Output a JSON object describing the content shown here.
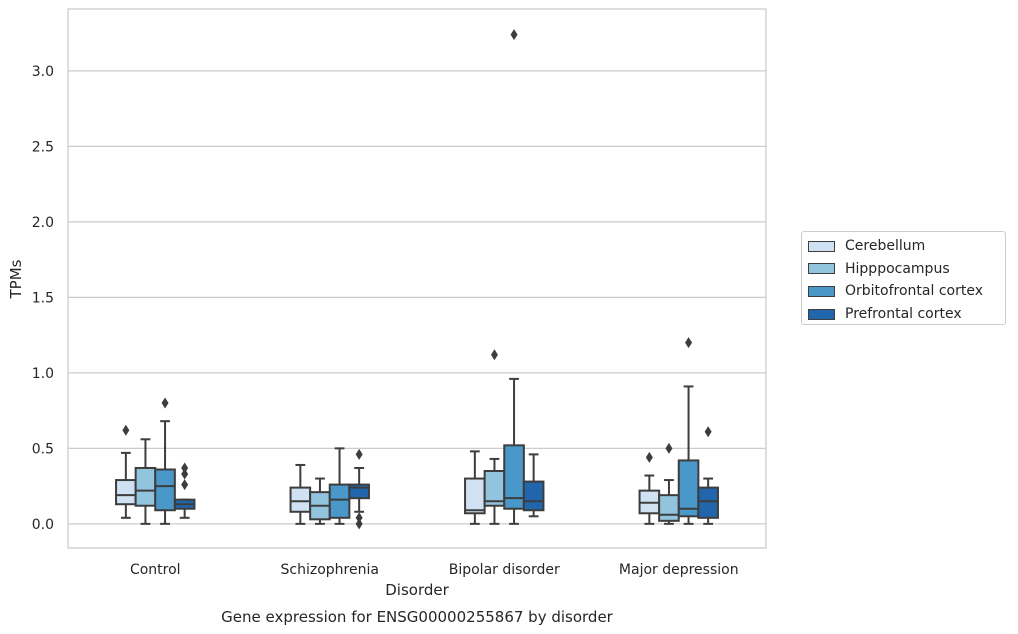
{
  "chart_data": {
    "type": "boxplot",
    "title": "",
    "caption": "Gene expression for ENSG00000255867 by disorder",
    "xlabel": "Disorder",
    "ylabel": "TPMs",
    "ylim": [
      -0.16,
      3.41
    ],
    "yticks": [
      "0.0",
      "0.5",
      "1.0",
      "1.5",
      "2.0",
      "2.5",
      "3.0"
    ],
    "grid": "horizontal",
    "legend_placement": "outside-right",
    "categories": [
      "Control",
      "Schizophrenia",
      "Bipolar disorder",
      "Major depression"
    ],
    "series": [
      {
        "name": "Cerebellum",
        "color": "#cfe1f2",
        "boxes": [
          {
            "whisker_low": 0.04,
            "q1": 0.13,
            "median": 0.19,
            "q3": 0.29,
            "whisker_high": 0.47,
            "outliers": [
              0.62
            ]
          },
          {
            "whisker_low": 0.0,
            "q1": 0.08,
            "median": 0.15,
            "q3": 0.24,
            "whisker_high": 0.39,
            "outliers": []
          },
          {
            "whisker_low": 0.0,
            "q1": 0.07,
            "median": 0.09,
            "q3": 0.3,
            "whisker_high": 0.48,
            "outliers": []
          },
          {
            "whisker_low": 0.0,
            "q1": 0.07,
            "median": 0.14,
            "q3": 0.22,
            "whisker_high": 0.32,
            "outliers": [
              0.44
            ]
          }
        ]
      },
      {
        "name": "Hipppocampus",
        "color": "#93c4de",
        "boxes": [
          {
            "whisker_low": 0.0,
            "q1": 0.12,
            "median": 0.22,
            "q3": 0.37,
            "whisker_high": 0.56,
            "outliers": []
          },
          {
            "whisker_low": 0.0,
            "q1": 0.03,
            "median": 0.12,
            "q3": 0.21,
            "whisker_high": 0.3,
            "outliers": []
          },
          {
            "whisker_low": 0.0,
            "q1": 0.12,
            "median": 0.15,
            "q3": 0.35,
            "whisker_high": 0.43,
            "outliers": [
              1.12
            ]
          },
          {
            "whisker_low": 0.0,
            "q1": 0.02,
            "median": 0.06,
            "q3": 0.19,
            "whisker_high": 0.29,
            "outliers": [
              0.5
            ]
          }
        ]
      },
      {
        "name": "Orbitofrontal cortex",
        "color": "#4a98c9",
        "boxes": [
          {
            "whisker_low": 0.0,
            "q1": 0.09,
            "median": 0.25,
            "q3": 0.36,
            "whisker_high": 0.68,
            "outliers": [
              0.8
            ]
          },
          {
            "whisker_low": 0.0,
            "q1": 0.04,
            "median": 0.16,
            "q3": 0.26,
            "whisker_high": 0.5,
            "outliers": []
          },
          {
            "whisker_low": 0.0,
            "q1": 0.1,
            "median": 0.17,
            "q3": 0.52,
            "whisker_high": 0.96,
            "outliers": [
              3.24
            ]
          },
          {
            "whisker_low": 0.0,
            "q1": 0.05,
            "median": 0.1,
            "q3": 0.42,
            "whisker_high": 0.91,
            "outliers": [
              1.2
            ]
          }
        ]
      },
      {
        "name": "Prefrontal cortex",
        "color": "#2166ac",
        "boxes": [
          {
            "whisker_low": 0.04,
            "q1": 0.1,
            "median": 0.13,
            "q3": 0.16,
            "whisker_high": 0.16,
            "outliers": [
              0.26,
              0.33,
              0.37
            ]
          },
          {
            "whisker_low": 0.08,
            "q1": 0.17,
            "median": 0.24,
            "q3": 0.26,
            "whisker_high": 0.37,
            "outliers": [
              0.46,
              0.04,
              0.0
            ]
          },
          {
            "whisker_low": 0.05,
            "q1": 0.09,
            "median": 0.15,
            "q3": 0.28,
            "whisker_high": 0.46,
            "outliers": []
          },
          {
            "whisker_low": 0.0,
            "q1": 0.04,
            "median": 0.15,
            "q3": 0.24,
            "whisker_high": 0.3,
            "outliers": [
              0.61
            ]
          }
        ]
      }
    ]
  }
}
